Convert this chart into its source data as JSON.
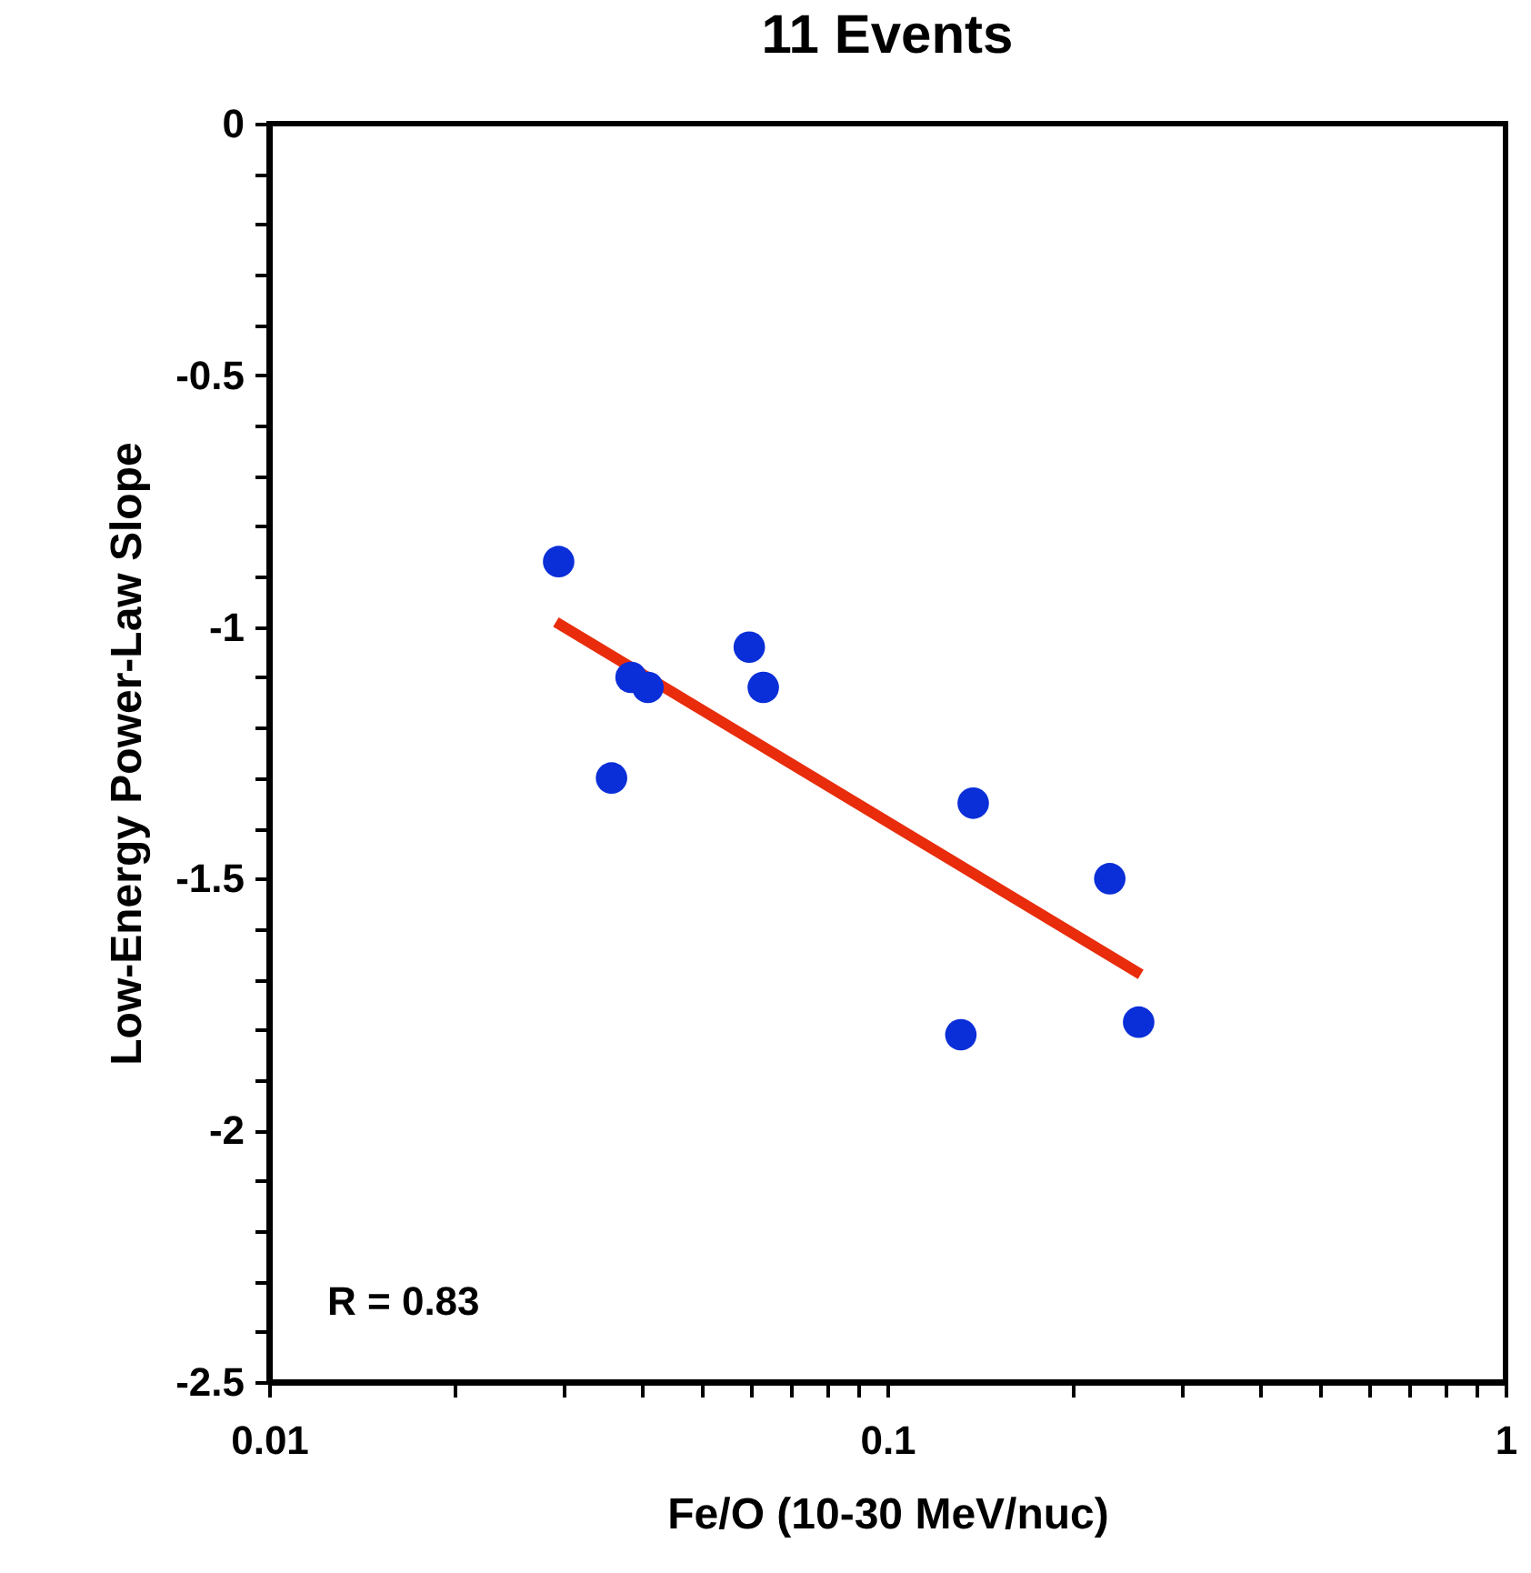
{
  "chart_data": {
    "type": "scatter",
    "title": "11 Events",
    "xlabel": "Fe/O (10-30 MeV/nuc)",
    "ylabel": "Low-Energy Power-Law Slope",
    "log": "x",
    "grid": false,
    "xlim": [
      0.01,
      1
    ],
    "ylim": [
      -2.5,
      0
    ],
    "xticks": [
      0.01,
      {
        "value": 0.02,
        "label": null
      },
      {
        "value": 0.03,
        "label": null
      },
      {
        "value": 0.04,
        "label": null
      },
      {
        "value": 0.05,
        "label": null
      },
      {
        "value": 0.06,
        "label": null
      },
      {
        "value": 0.07,
        "label": null
      },
      {
        "value": 0.08,
        "label": null
      },
      {
        "value": 0.09,
        "label": null
      },
      0.1,
      {
        "value": 0.2,
        "label": null
      },
      {
        "value": 0.3,
        "label": null
      },
      {
        "value": 0.4,
        "label": null
      },
      {
        "value": 0.5,
        "label": null
      },
      {
        "value": 0.6,
        "label": null
      },
      {
        "value": 0.7,
        "label": null
      },
      {
        "value": 0.8,
        "label": null
      },
      {
        "value": 0.9,
        "label": null
      },
      1
    ],
    "yticks": [
      -2.5,
      {
        "value": -2.4,
        "label": null
      },
      {
        "value": -2.3,
        "label": null
      },
      {
        "value": -2.2,
        "label": null
      },
      {
        "value": -2.1,
        "label": null
      },
      -2,
      {
        "value": -1.9,
        "label": null
      },
      {
        "value": -1.8,
        "label": null
      },
      {
        "value": -1.7,
        "label": null
      },
      {
        "value": -1.6,
        "label": null
      },
      -1.5,
      {
        "value": -1.4,
        "label": null
      },
      {
        "value": -1.3,
        "label": null
      },
      {
        "value": -1.2,
        "label": null
      },
      {
        "value": -1.1,
        "label": null
      },
      -1,
      {
        "value": -0.9,
        "label": null
      },
      {
        "value": -0.8,
        "label": null
      },
      {
        "value": -0.7,
        "label": null
      },
      {
        "value": -0.6,
        "label": null
      },
      -0.5,
      {
        "value": -0.4,
        "label": null
      },
      {
        "value": -0.3,
        "label": null
      },
      {
        "value": -0.2,
        "label": null
      },
      {
        "value": -0.1,
        "label": null
      },
      0
    ],
    "series": [
      {
        "marker": "circle",
        "color": "#0a2ed8",
        "x": [
          0.0294,
          0.0358,
          0.0385,
          0.041,
          0.0598,
          0.063,
          0.1377,
          0.1315,
          0.229,
          0.255
        ],
        "values": [
          -0.87,
          -1.3,
          -1.1,
          -1.12,
          -1.04,
          -1.12,
          -1.35,
          -1.81,
          -1.5,
          -1.785
        ]
      },
      {
        "type": "line",
        "color": "#e82c0c",
        "x": [
          0.0291,
          0.257
        ],
        "values": [
          -0.99,
          -1.69
        ]
      }
    ],
    "annotations": [
      "R = 0.83"
    ]
  }
}
